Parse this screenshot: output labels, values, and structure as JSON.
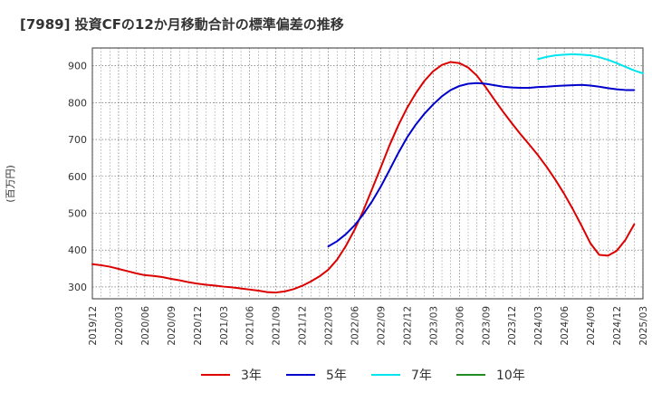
{
  "chart_data": {
    "type": "line",
    "title": "[7989]  投資CFの12か月移動合計の標準偏差の推移",
    "ylabel": "(百万円)",
    "xlabel": "",
    "ylim": [
      268,
      948
    ],
    "y_ticks": [
      300,
      400,
      500,
      600,
      700,
      800,
      900
    ],
    "x_ticks": [
      "2019/12",
      "2020/03",
      "2020/06",
      "2020/09",
      "2020/12",
      "2021/03",
      "2021/06",
      "2021/09",
      "2021/12",
      "2022/03",
      "2022/06",
      "2022/09",
      "2022/12",
      "2023/03",
      "2023/06",
      "2023/09",
      "2023/12",
      "2024/03",
      "2024/06",
      "2024/09",
      "2024/12",
      "2025/03"
    ],
    "grid": true,
    "legend_position": "bottom",
    "series": [
      {
        "name": "3年",
        "color": "#dd0000",
        "points": [
          [
            "2019/12",
            362
          ],
          [
            "2020/01",
            359
          ],
          [
            "2020/02",
            355
          ],
          [
            "2020/03",
            349
          ],
          [
            "2020/04",
            343
          ],
          [
            "2020/05",
            337
          ],
          [
            "2020/06",
            332
          ],
          [
            "2020/07",
            330
          ],
          [
            "2020/08",
            327
          ],
          [
            "2020/09",
            322
          ],
          [
            "2020/10",
            318
          ],
          [
            "2020/11",
            313
          ],
          [
            "2020/12",
            309
          ],
          [
            "2021/01",
            306
          ],
          [
            "2021/02",
            304
          ],
          [
            "2021/03",
            301
          ],
          [
            "2021/04",
            299
          ],
          [
            "2021/05",
            296
          ],
          [
            "2021/06",
            293
          ],
          [
            "2021/07",
            290
          ],
          [
            "2021/08",
            286
          ],
          [
            "2021/09",
            285
          ],
          [
            "2021/10",
            288
          ],
          [
            "2021/11",
            294
          ],
          [
            "2021/12",
            303
          ],
          [
            "2022/01",
            315
          ],
          [
            "2022/02",
            329
          ],
          [
            "2022/03",
            347
          ],
          [
            "2022/04",
            374
          ],
          [
            "2022/05",
            411
          ],
          [
            "2022/06",
            455
          ],
          [
            "2022/07",
            507
          ],
          [
            "2022/08",
            565
          ],
          [
            "2022/09",
            624
          ],
          [
            "2022/10",
            684
          ],
          [
            "2022/11",
            738
          ],
          [
            "2022/12",
            785
          ],
          [
            "2023/01",
            825
          ],
          [
            "2023/02",
            859
          ],
          [
            "2023/03",
            885
          ],
          [
            "2023/04",
            902
          ],
          [
            "2023/05",
            910
          ],
          [
            "2023/06",
            907
          ],
          [
            "2023/07",
            895
          ],
          [
            "2023/08",
            873
          ],
          [
            "2023/09",
            842
          ],
          [
            "2023/10",
            808
          ],
          [
            "2023/11",
            775
          ],
          [
            "2023/12",
            744
          ],
          [
            "2024/01",
            714
          ],
          [
            "2024/02",
            686
          ],
          [
            "2024/03",
            657
          ],
          [
            "2024/04",
            625
          ],
          [
            "2024/05",
            590
          ],
          [
            "2024/06",
            552
          ],
          [
            "2024/07",
            510
          ],
          [
            "2024/08",
            465
          ],
          [
            "2024/09",
            418
          ],
          [
            "2024/10",
            387
          ],
          [
            "2024/11",
            385
          ],
          [
            "2024/12",
            398
          ],
          [
            "2025/01",
            428
          ],
          [
            "2025/02",
            470
          ]
        ]
      },
      {
        "name": "5年",
        "color": "#0000cc",
        "points": [
          [
            "2022/03",
            410
          ],
          [
            "2022/04",
            424
          ],
          [
            "2022/05",
            443
          ],
          [
            "2022/06",
            467
          ],
          [
            "2022/07",
            497
          ],
          [
            "2022/08",
            532
          ],
          [
            "2022/09",
            572
          ],
          [
            "2022/10",
            617
          ],
          [
            "2022/11",
            663
          ],
          [
            "2022/12",
            705
          ],
          [
            "2023/01",
            740
          ],
          [
            "2023/02",
            770
          ],
          [
            "2023/03",
            795
          ],
          [
            "2023/04",
            817
          ],
          [
            "2023/05",
            834
          ],
          [
            "2023/06",
            845
          ],
          [
            "2023/07",
            851
          ],
          [
            "2023/08",
            853
          ],
          [
            "2023/09",
            851
          ],
          [
            "2023/10",
            847
          ],
          [
            "2023/11",
            843
          ],
          [
            "2023/12",
            841
          ],
          [
            "2024/01",
            840
          ],
          [
            "2024/02",
            840
          ],
          [
            "2024/03",
            842
          ],
          [
            "2024/04",
            843
          ],
          [
            "2024/05",
            845
          ],
          [
            "2024/06",
            846
          ],
          [
            "2024/07",
            847
          ],
          [
            "2024/08",
            848
          ],
          [
            "2024/09",
            846
          ],
          [
            "2024/10",
            843
          ],
          [
            "2024/11",
            839
          ],
          [
            "2024/12",
            836
          ],
          [
            "2025/01",
            834
          ],
          [
            "2025/02",
            834
          ]
        ]
      },
      {
        "name": "7年",
        "color": "#00e5ee",
        "points": [
          [
            "2024/03",
            918
          ],
          [
            "2024/04",
            924
          ],
          [
            "2024/05",
            928
          ],
          [
            "2024/06",
            930
          ],
          [
            "2024/07",
            931
          ],
          [
            "2024/08",
            930
          ],
          [
            "2024/09",
            928
          ],
          [
            "2024/10",
            923
          ],
          [
            "2024/11",
            916
          ],
          [
            "2024/12",
            907
          ],
          [
            "2025/01",
            897
          ],
          [
            "2025/02",
            887
          ],
          [
            "2025/03",
            879
          ]
        ]
      },
      {
        "name": "10年",
        "color": "#228b22",
        "points": []
      }
    ]
  }
}
